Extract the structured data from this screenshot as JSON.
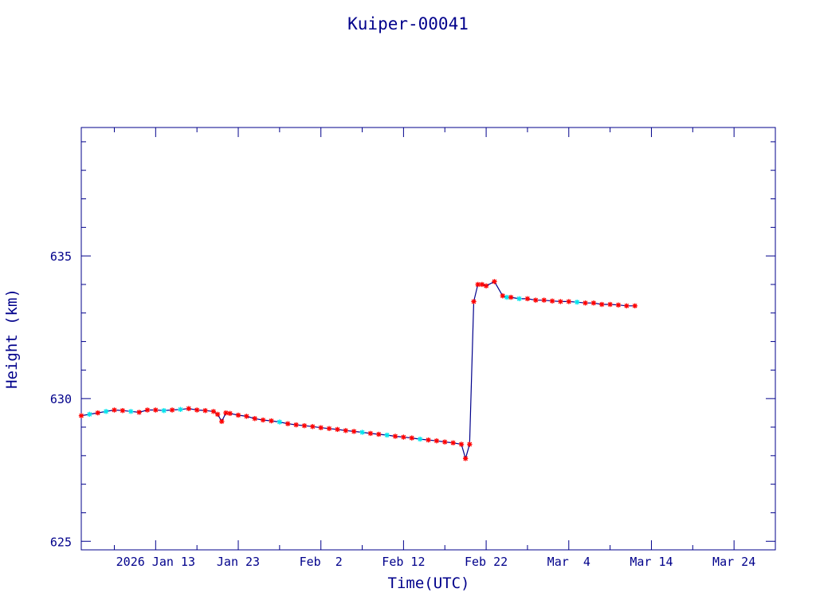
{
  "chart_data": {
    "type": "line",
    "title": "Kuiper-00041",
    "xlabel": "Time(UTC)",
    "ylabel": "Height (km)",
    "x_range": [
      "2026-01-04",
      "2026-03-29"
    ],
    "ylim": [
      624.7,
      639.5
    ],
    "x_ticks": [
      {
        "date": "2026-01-13",
        "label": "2026 Jan 13"
      },
      {
        "date": "2026-01-23",
        "label": "Jan 23"
      },
      {
        "date": "2026-02-02",
        "label": "Feb  2"
      },
      {
        "date": "2026-02-12",
        "label": "Feb 12"
      },
      {
        "date": "2026-02-22",
        "label": "Feb 22"
      },
      {
        "date": "2026-03-04",
        "label": "Mar  4"
      },
      {
        "date": "2026-03-14",
        "label": "Mar 14"
      },
      {
        "date": "2026-03-24",
        "label": "Mar 24"
      }
    ],
    "y_ticks": [
      625,
      630,
      635
    ],
    "y_minor_step": 1,
    "x_minor_days": 5,
    "grid": false,
    "colors": {
      "frame": "#00008b",
      "line": "#00008b",
      "marker_primary": "#ff0000",
      "marker_secondary": "#00e5ee"
    },
    "series": [
      {
        "x": [
          "2026-01-04",
          "2026-01-05",
          "2026-01-06",
          "2026-01-07",
          "2026-01-08",
          "2026-01-09",
          "2026-01-10",
          "2026-01-11",
          "2026-01-12",
          "2026-01-13",
          "2026-01-14",
          "2026-01-15",
          "2026-01-16",
          "2026-01-17",
          "2026-01-18",
          "2026-01-19",
          "2026-01-20",
          "2026-01-20T12:00",
          "2026-01-21",
          "2026-01-21T12:00",
          "2026-01-22",
          "2026-01-23",
          "2026-01-24",
          "2026-01-25",
          "2026-01-26",
          "2026-01-27",
          "2026-01-28",
          "2026-01-29",
          "2026-01-30",
          "2026-01-31",
          "2026-02-01",
          "2026-02-02",
          "2026-02-03",
          "2026-02-04",
          "2026-02-05",
          "2026-02-06",
          "2026-02-07",
          "2026-02-08",
          "2026-02-09",
          "2026-02-10",
          "2026-02-11",
          "2026-02-12",
          "2026-02-13",
          "2026-02-14",
          "2026-02-15",
          "2026-02-16",
          "2026-02-17",
          "2026-02-18",
          "2026-02-19",
          "2026-02-19T12:00",
          "2026-02-20",
          "2026-02-20T12:00",
          "2026-02-21",
          "2026-02-21T12:00",
          "2026-02-22",
          "2026-02-23",
          "2026-02-24",
          "2026-02-24T12:00",
          "2026-02-25",
          "2026-02-26",
          "2026-02-27",
          "2026-02-28",
          "2026-03-01",
          "2026-03-02",
          "2026-03-03",
          "2026-03-04",
          "2026-03-05",
          "2026-03-06",
          "2026-03-07",
          "2026-03-08",
          "2026-03-09",
          "2026-03-10",
          "2026-03-11",
          "2026-03-12"
        ],
        "y": [
          629.4,
          629.45,
          629.5,
          629.55,
          629.6,
          629.58,
          629.55,
          629.52,
          629.6,
          629.6,
          629.58,
          629.6,
          629.62,
          629.65,
          629.6,
          629.58,
          629.55,
          629.45,
          629.2,
          629.5,
          629.48,
          629.42,
          629.38,
          629.3,
          629.25,
          629.22,
          629.18,
          629.12,
          629.08,
          629.05,
          629.02,
          628.98,
          628.95,
          628.92,
          628.88,
          628.85,
          628.82,
          628.78,
          628.75,
          628.72,
          628.68,
          628.65,
          628.62,
          628.58,
          628.55,
          628.52,
          628.48,
          628.45,
          628.4,
          627.9,
          628.4,
          633.4,
          634.0,
          634.0,
          633.95,
          634.1,
          633.6,
          633.55,
          633.55,
          633.5,
          633.5,
          633.45,
          633.45,
          633.42,
          633.4,
          633.4,
          633.38,
          633.35,
          633.35,
          633.3,
          633.3,
          633.28,
          633.25,
          633.25
        ],
        "marker_colors": [
          "r",
          "c",
          "r",
          "c",
          "r",
          "r",
          "c",
          "r",
          "r",
          "r",
          "c",
          "r",
          "c",
          "r",
          "r",
          "r",
          "r",
          "r",
          "r",
          "r",
          "r",
          "r",
          "r",
          "r",
          "r",
          "r",
          "c",
          "r",
          "r",
          "r",
          "r",
          "r",
          "r",
          "r",
          "r",
          "r",
          "c",
          "r",
          "r",
          "c",
          "r",
          "r",
          "r",
          "c",
          "r",
          "r",
          "r",
          "r",
          "r",
          "r",
          "r",
          "r",
          "r",
          "r",
          "r",
          "r",
          "r",
          "c",
          "r",
          "c",
          "r",
          "r",
          "r",
          "r",
          "r",
          "r",
          "c",
          "r",
          "r",
          "r",
          "r",
          "r",
          "r",
          "r"
        ]
      }
    ]
  }
}
